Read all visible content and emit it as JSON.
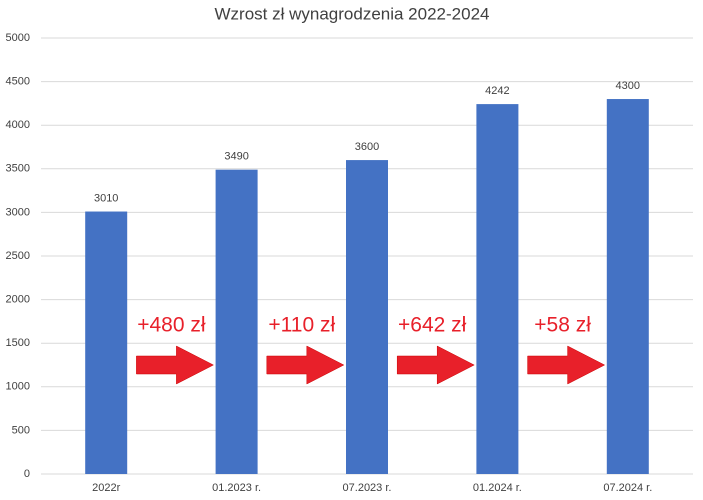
{
  "chart_data": {
    "type": "bar",
    "title": "Wzrost zł wynagrodzenia 2022-2024",
    "categories": [
      "2022r",
      "01.2023 r.",
      "07.2023 r.",
      "01.2024 r.",
      "07.2024 r."
    ],
    "values": [
      3010,
      3490,
      3600,
      4242,
      4300
    ],
    "color": "#4472c4",
    "ylim": [
      0,
      5000
    ],
    "yticks": [
      0,
      500,
      1000,
      1500,
      2000,
      2500,
      3000,
      3500,
      4000,
      4500,
      5000
    ],
    "grid": true,
    "annotations": [
      "+480 zł",
      "+110 zł",
      "+642 zł",
      "+58 zł"
    ],
    "annotation_color": "#e8202a"
  }
}
